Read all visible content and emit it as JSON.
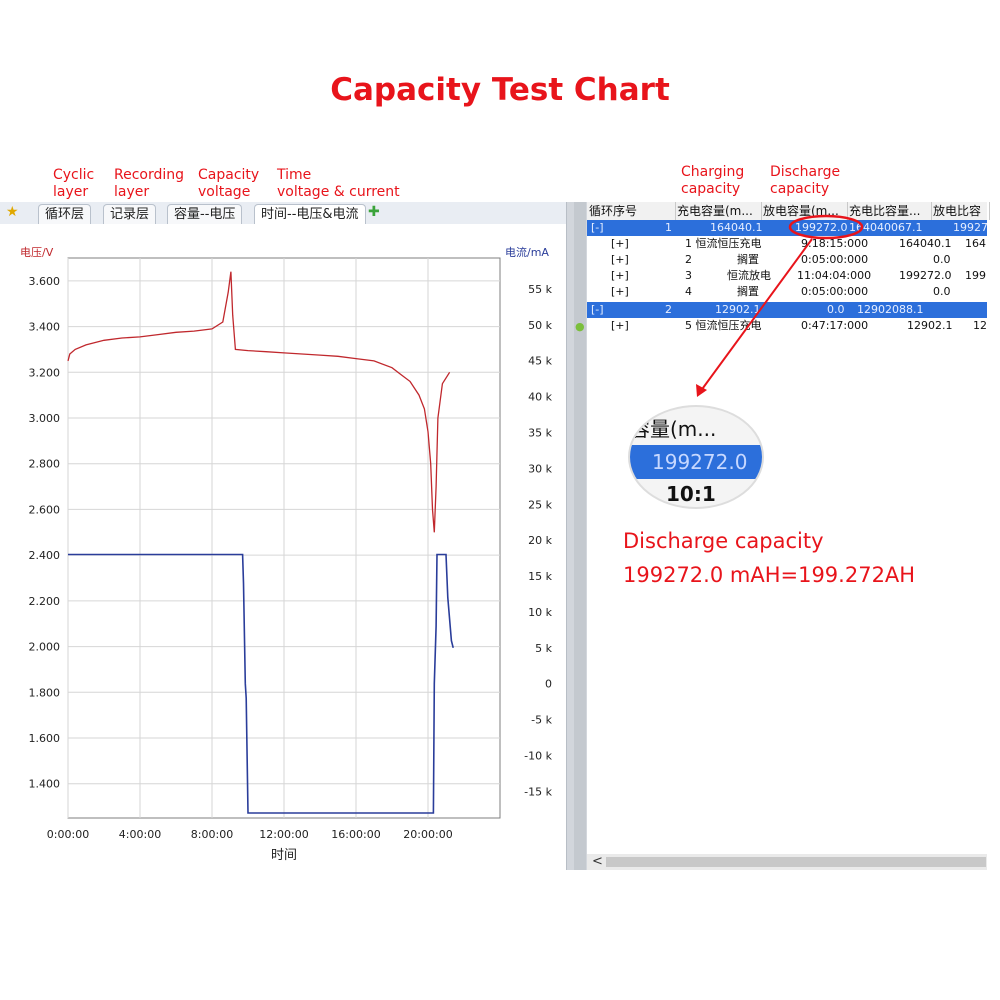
{
  "title": "Capacity Test Chart",
  "annotations": {
    "cyclic_1": "Cyclic",
    "cyclic_2": "layer",
    "recording_1": "Recording",
    "recording_2": "layer",
    "capacity_1": "Capacity",
    "capacity_2": "voltage",
    "time_1": "Time",
    "time_2": "voltage & current",
    "charging_1": "Charging",
    "charging_2": "capacity",
    "discharge_1": "Discharge",
    "discharge_2": "capacity",
    "big_1": "Discharge capacity",
    "big_2": "199272.0 mAH=199.272AH"
  },
  "tabs": [
    "循环层",
    "记录层",
    "容量--电压",
    "时间--电压&电流"
  ],
  "chart_data": {
    "type": "line",
    "xlabel": "时间",
    "ylabel": "电压/V",
    "y2label": "电流/mA",
    "x_ticks": [
      "0:00:00",
      "4:00:00",
      "8:00:00",
      "12:00:00",
      "16:00:00",
      "20:00:00"
    ],
    "y_ticks": [
      "3.600",
      "3.400",
      "3.200",
      "3.000",
      "2.800",
      "2.600",
      "2.400",
      "2.200",
      "2.000",
      "1.800",
      "1.600",
      "1.400"
    ],
    "y2_ticks": [
      "55 k",
      "50 k",
      "45 k",
      "40 k",
      "35 k",
      "30 k",
      "25 k",
      "20 k",
      "15 k",
      "10 k",
      "5 k",
      "0",
      "-5 k",
      "-10 k",
      "-15 k"
    ],
    "xlim": [
      0,
      24
    ],
    "ylim": [
      1.25,
      3.7
    ],
    "y2lim": [
      -18700,
      59300
    ],
    "series": [
      {
        "color": "#c0282d",
        "x": [
          0,
          0.1,
          0.4,
          1,
          2,
          3,
          4,
          5,
          6,
          7,
          8,
          8.6,
          8.9,
          9.05,
          9.15,
          9.3,
          10,
          11,
          12,
          13,
          14,
          15,
          16,
          17,
          18,
          18.5,
          19,
          19.5,
          19.8,
          20.0,
          20.15,
          20.25,
          20.35,
          20.45,
          20.55,
          20.8,
          21.2
        ],
        "y": [
          3.25,
          3.28,
          3.3,
          3.32,
          3.34,
          3.35,
          3.355,
          3.365,
          3.375,
          3.38,
          3.39,
          3.42,
          3.55,
          3.64,
          3.45,
          3.3,
          3.295,
          3.29,
          3.285,
          3.28,
          3.275,
          3.27,
          3.26,
          3.25,
          3.22,
          3.19,
          3.16,
          3.1,
          3.04,
          2.94,
          2.8,
          2.6,
          2.5,
          2.7,
          3.0,
          3.15,
          3.2
        ]
      },
      {
        "color": "#2a3d9a",
        "x": [
          0,
          9.7,
          9.75,
          9.8,
          9.85,
          9.9,
          9.95,
          10.0,
          20.3,
          20.35,
          20.45,
          20.5,
          21.0,
          21.1,
          21.3,
          21.4
        ],
        "y": [
          18000,
          18000,
          14000,
          7000,
          0,
          -2000,
          -10000,
          -18000,
          -18000,
          0,
          8000,
          18000,
          18000,
          12000,
          6000,
          5000
        ]
      }
    ]
  },
  "grid": {
    "headers": [
      "循环序号",
      "充电容量(m...",
      "放电容量(m...",
      "充电比容量...",
      "放电比容"
    ],
    "rows": [
      {
        "c0": "[-]",
        "c1": "1",
        "c2": "164040.1",
        "c3": "199272.0",
        "c4": "164040067.1",
        "c5": "19927",
        "selected": true
      },
      {
        "c0": "[+]",
        "c1": "1  恒流恒压充电",
        "c2": "",
        "c3": "9:18:15:000",
        "c4": "164040.1",
        "c5": "164"
      },
      {
        "c0": "[+]",
        "c1": "2",
        "c2": "搁置",
        "c3": "0:05:00:000",
        "c4": "0.0",
        "c5": ""
      },
      {
        "c0": "[+]",
        "c1": "3",
        "c2": "恒流放电",
        "c3": "11:04:04:000",
        "c4": "199272.0",
        "c5": "199"
      },
      {
        "c0": "[+]",
        "c1": "4",
        "c2": "搁置",
        "c3": "0:05:00:000",
        "c4": "0.0",
        "c5": ""
      },
      {
        "c0": "[-]",
        "c1": "2",
        "c2": "12902.1",
        "c3": "0.0",
        "c4": "12902088.1",
        "c5": "",
        "selected": true
      },
      {
        "c0": "[+]",
        "c1": "5  恒流恒压充电",
        "c2": "",
        "c3": "0:47:17:000",
        "c4": "12902.1",
        "c5": "12"
      }
    ]
  },
  "zoom": {
    "head": "容量(m...",
    "value": "199272.0",
    "next": "10:1"
  },
  "scroll_left_arrow": "<"
}
